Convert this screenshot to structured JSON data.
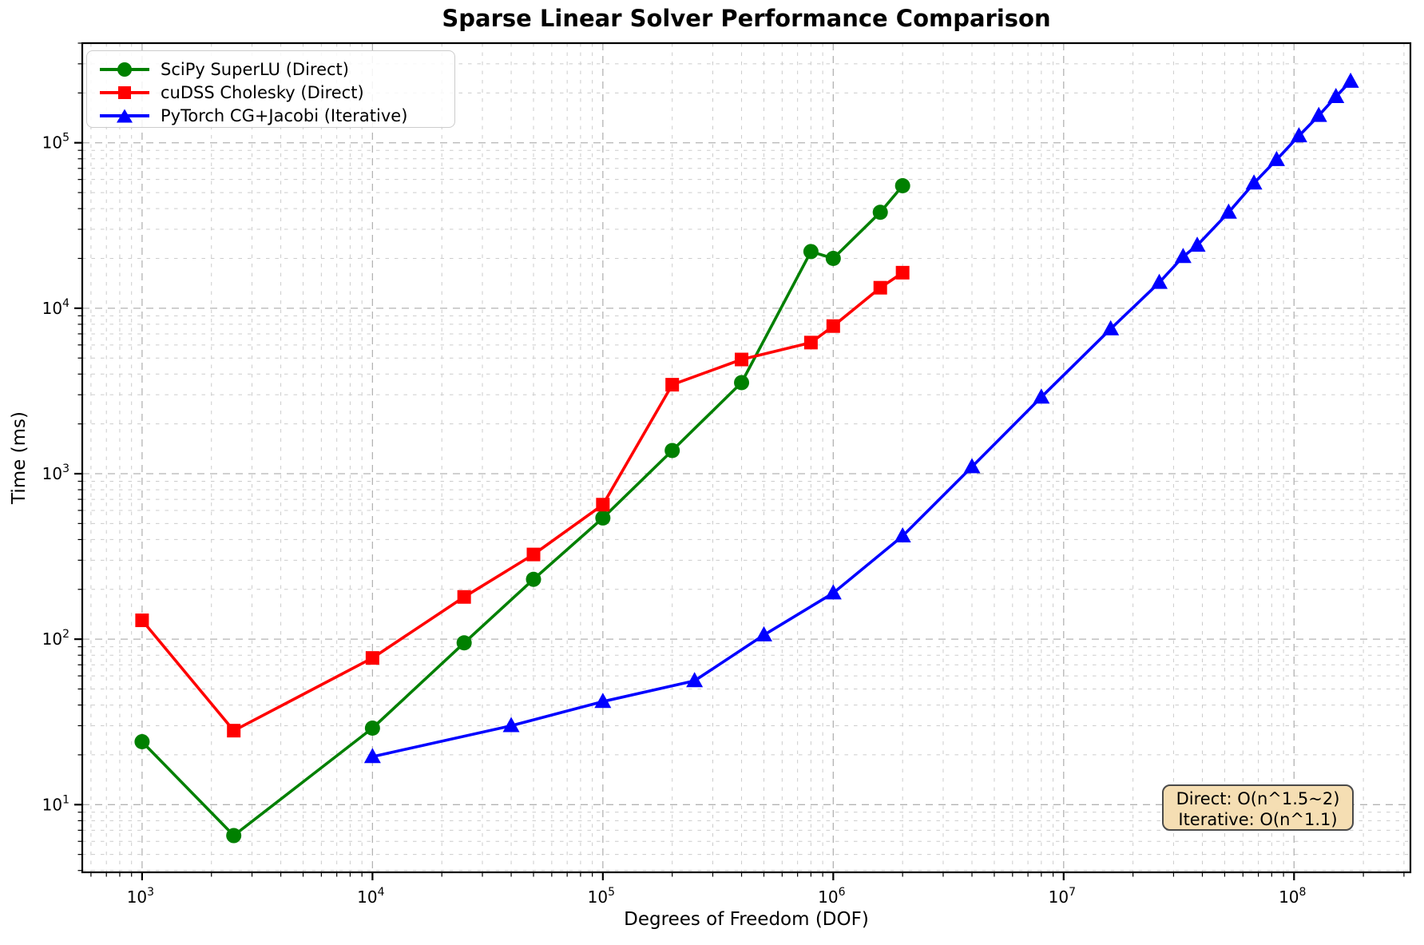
{
  "figure": {
    "title": "Sparse Linear Solver Performance Comparison"
  },
  "chart_data": {
    "type": "line",
    "title": "Sparse Linear Solver Performance Comparison",
    "xlabel": "Degrees of Freedom (DOF)",
    "ylabel": "Time (ms)",
    "x_scale": "log",
    "y_scale": "log",
    "xlim": [
      550,
      320000000
    ],
    "ylim": [
      3.9,
      400000
    ],
    "x_tick_exponents": [
      3,
      4,
      5,
      6,
      7,
      8
    ],
    "y_tick_exponents": [
      1,
      2,
      3,
      4,
      5
    ],
    "grid": "major and minor, dashed, light gray",
    "legend_position": "upper left",
    "series": [
      {
        "name": "SciPy SuperLU (Direct)",
        "color": "#008000",
        "marker": "circle",
        "x": [
          1000,
          2500,
          10000,
          25000,
          50000,
          100000,
          200000,
          400000,
          800000,
          1000000,
          1600000,
          2000000
        ],
        "y": [
          24,
          6.5,
          29,
          95,
          230,
          540,
          1380,
          3550,
          22000,
          20000,
          38000,
          55000
        ]
      },
      {
        "name": "cuDSS Cholesky (Direct)",
        "color": "#ff0000",
        "marker": "square",
        "x": [
          1000,
          2500,
          10000,
          25000,
          50000,
          100000,
          200000,
          400000,
          800000,
          1000000,
          1600000,
          2000000
        ],
        "y": [
          130,
          28,
          77,
          180,
          325,
          650,
          3450,
          4900,
          6200,
          7800,
          13300,
          16400
        ]
      },
      {
        "name": "PyTorch CG+Jacobi (Iterative)",
        "color": "#0000ff",
        "marker": "triangle-up",
        "x": [
          10000,
          40000,
          100000,
          250000,
          500000,
          1000000,
          2000000,
          4000000,
          8000000,
          16000000,
          26000000,
          33000000,
          38000000,
          52000000,
          67000000,
          84000000,
          105000000,
          128000000,
          152000000,
          176000000
        ],
        "y": [
          19.5,
          30,
          42,
          56,
          106,
          190,
          420,
          1100,
          2900,
          7500,
          14300,
          20500,
          24000,
          38000,
          57000,
          79000,
          110000,
          146000,
          190000,
          235000
        ]
      }
    ],
    "annotation": {
      "position": "lower right",
      "fill": "#f5deb3",
      "lines": [
        "Direct: O(n^1.5~2)",
        "Iterative: O(n^1.1)"
      ]
    }
  }
}
